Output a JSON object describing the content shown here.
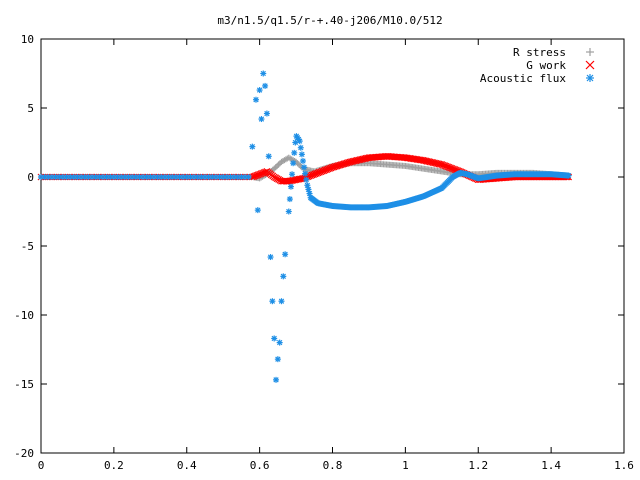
{
  "chart_data": {
    "type": "scatter",
    "title": "m3/n1.5/q1.5/r-+.40-j206/M10.0/512",
    "xlabel": "",
    "ylabel": "",
    "xlim": [
      0,
      1.6
    ],
    "ylim": [
      -20,
      10
    ],
    "xticks": [
      "0",
      "0.2",
      "0.4",
      "0.6",
      "0.8",
      "1",
      "1.2",
      "1.4",
      "1.6"
    ],
    "yticks": [
      "10",
      "5",
      "0",
      "-5",
      "-10",
      "-15",
      "-20"
    ],
    "grid": false,
    "legend_position": "top-right",
    "series": [
      {
        "name": "R stress",
        "marker": "plus",
        "color": "#a0a0a0",
        "x": [
          0.58,
          0.6,
          0.62,
          0.64,
          0.66,
          0.68,
          0.7,
          0.72,
          0.75,
          0.8,
          0.85,
          0.9,
          0.95,
          1.0,
          1.05,
          1.1,
          1.15,
          1.2,
          1.25,
          1.3,
          1.35,
          1.4,
          1.45
        ],
        "y": [
          0.0,
          -0.1,
          0.2,
          0.6,
          1.1,
          1.4,
          1.1,
          0.6,
          0.4,
          0.8,
          1.0,
          1.0,
          0.9,
          0.8,
          0.6,
          0.4,
          0.2,
          0.2,
          0.3,
          0.3,
          0.3,
          0.2,
          0.1
        ]
      },
      {
        "name": "G work",
        "marker": "cross",
        "color": "#ff0000",
        "x": [
          0.58,
          0.6,
          0.62,
          0.64,
          0.66,
          0.68,
          0.7,
          0.72,
          0.75,
          0.8,
          0.85,
          0.9,
          0.95,
          1.0,
          1.05,
          1.1,
          1.15,
          1.2,
          1.25,
          1.3,
          1.35,
          1.4,
          1.45
        ],
        "y": [
          0.0,
          0.2,
          0.4,
          0.0,
          -0.3,
          -0.3,
          -0.2,
          -0.1,
          0.2,
          0.7,
          1.1,
          1.4,
          1.5,
          1.4,
          1.2,
          0.9,
          0.4,
          -0.2,
          -0.1,
          0.0,
          0.0,
          0.0,
          0.0
        ]
      },
      {
        "name": "Acoustic flux",
        "marker": "star",
        "color": "#1e8fe6",
        "x": [
          0.58,
          0.59,
          0.595,
          0.6,
          0.605,
          0.61,
          0.615,
          0.62,
          0.625,
          0.63,
          0.635,
          0.64,
          0.645,
          0.65,
          0.655,
          0.66,
          0.665,
          0.67,
          0.68,
          0.69,
          0.7,
          0.71,
          0.72,
          0.73,
          0.74,
          0.76,
          0.8,
          0.85,
          0.9,
          0.95,
          1.0,
          1.05,
          1.1,
          1.13,
          1.15,
          1.17,
          1.2,
          1.25,
          1.3,
          1.35,
          1.4,
          1.45
        ],
        "y": [
          2.2,
          5.6,
          -2.4,
          6.3,
          4.2,
          7.5,
          6.6,
          4.6,
          1.5,
          -5.8,
          -9.0,
          -11.7,
          -14.7,
          -13.2,
          -12.0,
          -9.0,
          -7.2,
          -5.6,
          -2.5,
          0.5,
          3.0,
          2.6,
          1.0,
          -0.5,
          -1.5,
          -1.9,
          -2.1,
          -2.2,
          -2.2,
          -2.1,
          -1.8,
          -1.4,
          -0.8,
          0.0,
          0.3,
          0.2,
          -0.1,
          0.1,
          0.2,
          0.2,
          0.2,
          0.1
        ]
      }
    ]
  }
}
